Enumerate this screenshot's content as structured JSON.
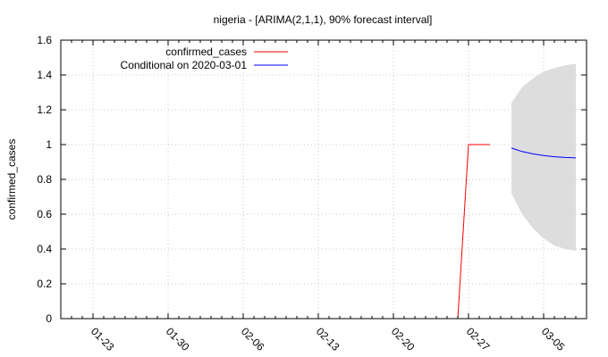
{
  "chart_data": {
    "type": "line",
    "title": "nigeria -  [ARIMA(2,1,1), 90% forecast interval]",
    "xlabel": "",
    "ylabel": "confirmed_cases",
    "ylim": [
      0,
      1.6
    ],
    "yticks": [
      0,
      0.2,
      0.4,
      0.6,
      0.8,
      1,
      1.2,
      1.4,
      1.6
    ],
    "yticklabels": [
      "0",
      "0.2",
      "0.4",
      "0.6",
      "0.8",
      "1",
      "1.2",
      "1.4",
      "1.6"
    ],
    "xlim": [
      "2020-01-20",
      "2020-03-09"
    ],
    "xticks": [
      "2020-01-23",
      "2020-01-30",
      "2020-02-06",
      "2020-02-13",
      "2020-02-20",
      "2020-02-27",
      "2020-03-05"
    ],
    "xticklabels": [
      "01-23",
      "01-30",
      "02-06",
      "02-13",
      "02-20",
      "02-27",
      "03-05"
    ],
    "grid": true,
    "legend_position": "top-left",
    "series": [
      {
        "name": "confirmed_cases",
        "color": "#ff0000",
        "x": [
          "2020-02-26",
          "2020-02-27",
          "2020-02-28",
          "2020-02-29"
        ],
        "y": [
          0,
          1,
          1,
          1
        ]
      },
      {
        "name": "Conditional on 2020-03-01",
        "color": "#0000ff",
        "x": [
          "2020-03-02",
          "2020-03-03",
          "2020-03-04",
          "2020-03-05",
          "2020-03-06",
          "2020-03-07",
          "2020-03-08"
        ],
        "y": [
          0.98,
          0.96,
          0.947,
          0.937,
          0.93,
          0.926,
          0.924
        ]
      }
    ],
    "forecast_interval": {
      "color": "#dddddd",
      "x": [
        "2020-03-02",
        "2020-03-03",
        "2020-03-04",
        "2020-03-05",
        "2020-03-06",
        "2020-03-07",
        "2020-03-08"
      ],
      "lower": [
        0.72,
        0.6,
        0.52,
        0.46,
        0.42,
        0.4,
        0.39
      ],
      "upper": [
        1.24,
        1.33,
        1.38,
        1.42,
        1.44,
        1.455,
        1.465
      ]
    }
  }
}
